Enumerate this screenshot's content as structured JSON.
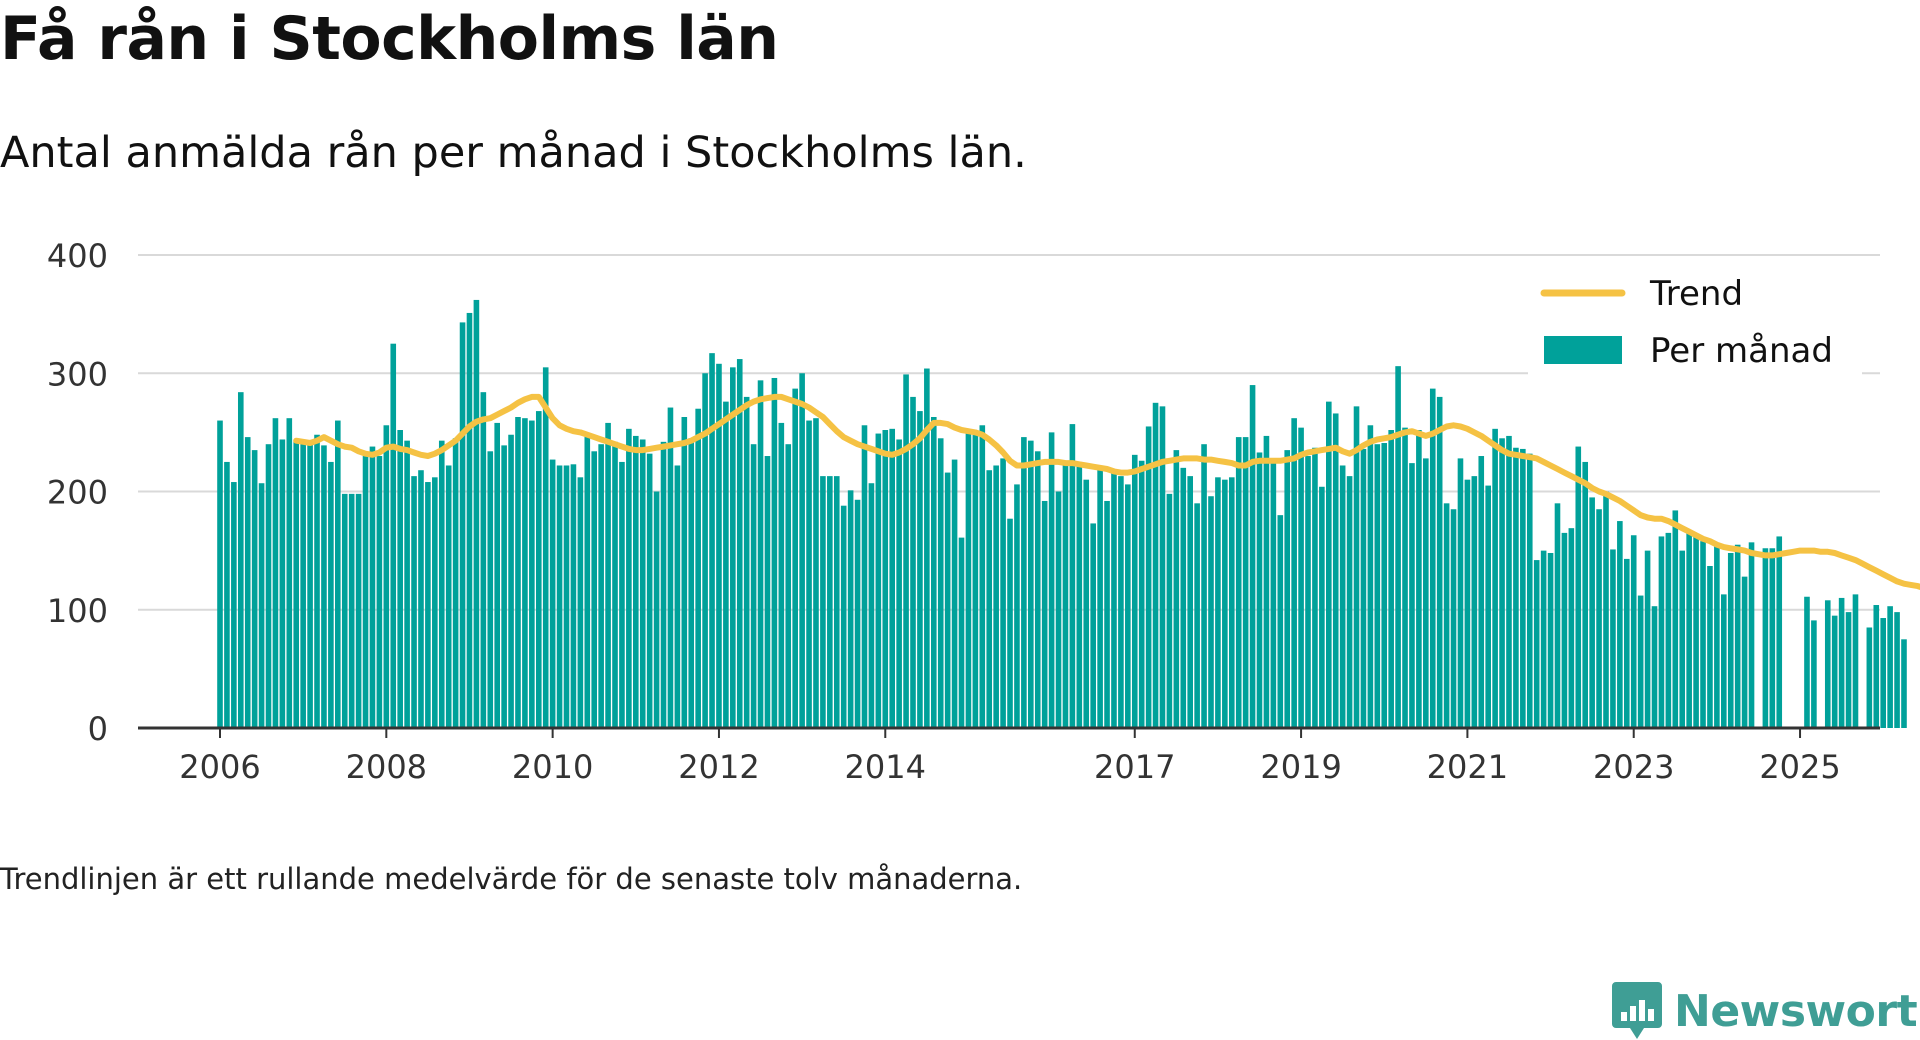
{
  "header": {
    "title": "Få rån i Stockholms län",
    "subtitle": "Antal anmälda rån per månad i Stockholms län."
  },
  "footer": {
    "note": "Trendlinjen är ett rullande medelvärde för de senaste tolv månaderna.",
    "brand": "Newsworthy",
    "brand_icon": "bar-chart-speech-bubble-icon"
  },
  "colors": {
    "bars": "#00a19a",
    "trend": "#f5c244",
    "grid": "#d9d9d9",
    "axis": "#333333",
    "brand": "#3f9e95"
  },
  "chart_data": {
    "type": "bar",
    "title": "",
    "xlabel": "",
    "ylabel": "",
    "ylim": [
      0,
      400
    ],
    "yticks": [
      0,
      100,
      200,
      300,
      400
    ],
    "xticks": [
      "2006",
      "2008",
      "2010",
      "2012",
      "2014",
      "2017",
      "2019",
      "2021",
      "2023",
      "2025"
    ],
    "grid": true,
    "legend_position": "top-right",
    "start_month": "2006-01",
    "series": [
      {
        "name": "Per månad",
        "kind": "bar",
        "values": [
          260,
          225,
          208,
          284,
          246,
          235,
          207,
          240,
          262,
          244,
          262,
          243,
          240,
          242,
          248,
          239,
          225,
          260,
          198,
          198,
          198,
          230,
          238,
          230,
          256,
          325,
          252,
          243,
          213,
          218,
          208,
          212,
          243,
          222,
          245,
          343,
          351,
          362,
          284,
          234,
          258,
          239,
          248,
          263,
          262,
          260,
          268,
          305,
          227,
          222,
          222,
          223,
          212,
          248,
          234,
          240,
          258,
          242,
          225,
          253,
          247,
          244,
          232,
          200,
          242,
          271,
          222,
          263,
          245,
          270,
          300,
          317,
          308,
          276,
          305,
          312,
          280,
          240,
          294,
          230,
          296,
          258,
          240,
          287,
          300,
          260,
          262,
          213,
          213,
          213,
          188,
          201,
          193,
          256,
          207,
          249,
          252,
          253,
          244,
          299,
          280,
          268,
          304,
          263,
          245,
          216,
          227,
          161,
          251,
          251,
          256,
          218,
          222,
          228,
          177,
          206,
          246,
          243,
          234,
          192,
          250,
          200,
          223,
          257,
          225,
          210,
          173,
          222,
          192,
          217,
          213,
          206,
          231,
          226,
          255,
          275,
          272,
          198,
          235,
          220,
          213,
          190,
          240,
          196,
          212,
          210,
          212,
          246,
          246,
          290,
          233,
          247,
          226,
          180,
          235,
          262,
          254,
          230,
          237,
          204,
          276,
          266,
          222,
          213,
          272,
          236,
          256,
          240,
          241,
          252,
          306,
          254,
          224,
          252,
          228,
          287,
          280,
          190,
          185,
          228,
          210,
          213,
          230,
          205,
          253,
          245,
          247,
          237,
          236,
          232,
          142,
          150,
          148,
          190,
          165,
          169,
          238,
          225,
          195,
          185,
          200,
          151,
          175,
          143,
          163,
          112,
          150,
          103,
          162,
          165,
          184,
          150,
          165,
          162,
          158,
          137,
          156,
          113,
          148,
          155,
          128,
          157,
          0,
          152,
          152,
          162,
          0,
          0,
          0,
          111,
          91,
          0,
          108,
          95,
          110,
          98,
          113,
          0,
          85,
          104,
          93,
          103,
          98,
          75
        ],
        "color": "#00a19a"
      },
      {
        "name": "Trend",
        "kind": "line",
        "start_index": 11,
        "values": [
          243,
          242,
          241,
          243,
          246,
          243,
          240,
          238,
          237,
          234,
          232,
          231,
          233,
          237,
          238,
          236,
          235,
          233,
          231,
          230,
          232,
          235,
          239,
          243,
          249,
          255,
          259,
          261,
          262,
          265,
          268,
          271,
          275,
          278,
          280,
          280,
          271,
          262,
          256,
          253,
          251,
          250,
          248,
          246,
          244,
          242,
          240,
          238,
          236,
          235,
          235,
          236,
          237,
          238,
          239,
          240,
          241,
          243,
          246,
          249,
          253,
          257,
          261,
          265,
          269,
          273,
          276,
          278,
          279,
          280,
          280,
          278,
          276,
          274,
          271,
          267,
          263,
          257,
          251,
          246,
          243,
          240,
          238,
          236,
          234,
          232,
          231,
          233,
          236,
          240,
          245,
          252,
          258,
          258,
          257,
          254,
          252,
          251,
          250,
          248,
          244,
          239,
          233,
          226,
          222,
          222,
          223,
          224,
          225,
          225,
          225,
          224,
          224,
          223,
          222,
          221,
          220,
          219,
          217,
          216,
          216,
          217,
          219,
          221,
          223,
          225,
          226,
          227,
          228,
          228,
          228,
          227,
          227,
          226,
          225,
          224,
          222,
          222,
          225,
          226,
          226,
          226,
          226,
          227,
          228,
          231,
          233,
          234,
          235,
          236,
          237,
          234,
          232,
          235,
          239,
          242,
          244,
          245,
          246,
          248,
          250,
          251,
          249,
          247,
          249,
          252,
          255,
          256,
          255,
          253,
          250,
          247,
          243,
          239,
          235,
          232,
          231,
          230,
          229,
          228,
          225,
          222,
          219,
          216,
          213,
          210,
          207,
          203,
          200,
          198,
          195,
          192,
          188,
          184,
          180,
          178,
          177,
          177,
          175,
          172,
          169,
          166,
          163,
          160,
          158,
          155,
          153,
          152,
          151,
          150,
          148,
          147,
          146,
          146,
          147,
          148,
          149,
          150,
          150,
          150,
          149,
          149,
          148,
          146,
          144,
          142,
          139,
          136,
          133,
          130,
          127,
          124,
          122,
          121,
          120,
          118,
          116,
          113,
          110,
          107,
          103,
          100,
          97
        ]
      }
    ]
  }
}
